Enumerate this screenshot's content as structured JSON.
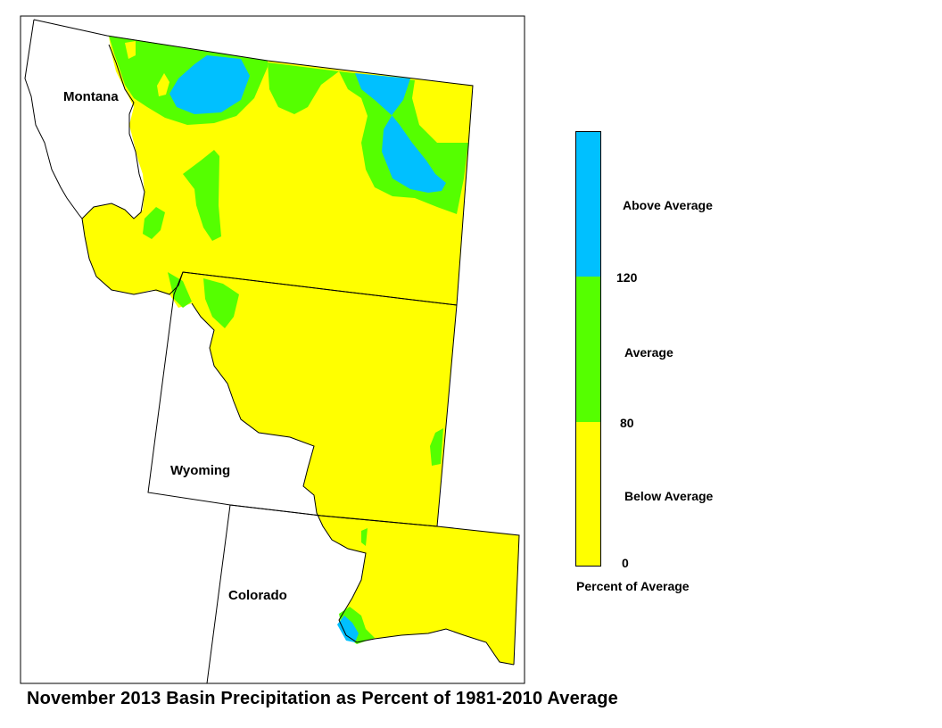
{
  "map": {
    "state_labels": {
      "montana": "Montana",
      "wyoming": "Wyoming",
      "colorado": "Colorado"
    },
    "colors": {
      "below": "#ffff00",
      "average": "#55ff00",
      "above": "#00c0ff"
    }
  },
  "legend": {
    "categories": {
      "above": "Above Average",
      "average": "Average",
      "below": "Below Average"
    },
    "breaks": {
      "high": "120",
      "mid": "80",
      "low": "0"
    },
    "units": "Percent of Average"
  },
  "title": "November 2013 Basin Precipitation as Percent of 1981-2010 Average"
}
